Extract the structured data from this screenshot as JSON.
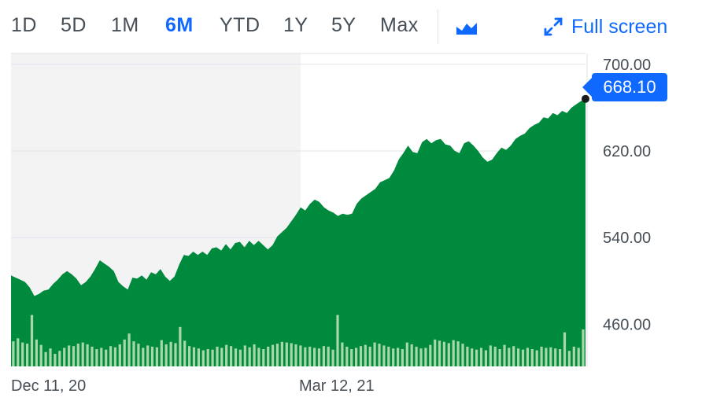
{
  "toolbar": {
    "ranges": [
      "1D",
      "5D",
      "1M",
      "6M",
      "YTD",
      "1Y",
      "5Y",
      "Max"
    ],
    "active_range": "6M",
    "chart_type_icon": "mountain-chart-icon",
    "fullscreen_icon": "expand-arrows-icon",
    "fullscreen_label": "Full screen"
  },
  "current_price": "668.10",
  "colors": {
    "area": "#008a3e",
    "accent": "#0f69ff",
    "volume": "#a8d8a8",
    "shade": "#f3f3f3",
    "grid": "#e0e3eb"
  },
  "chart_data": {
    "type": "area",
    "ylim": [
      421,
      710
    ],
    "yticks": [
      "700.00",
      "620.00",
      "540.00",
      "460.00"
    ],
    "ytick_values": [
      700,
      620,
      540,
      460
    ],
    "xtick_labels": [
      "Dec 11, 20",
      "Mar 12, 21"
    ],
    "shaded_period_end_index": 62,
    "price": [
      505,
      503,
      501,
      499,
      494,
      486,
      488,
      491,
      492,
      497,
      501,
      506,
      509,
      506,
      502,
      496,
      499,
      504,
      511,
      519,
      516,
      513,
      509,
      499,
      495,
      492,
      503,
      502,
      505,
      501,
      508,
      506,
      511,
      504,
      500,
      504,
      515,
      524,
      523,
      527,
      524,
      527,
      524,
      530,
      531,
      528,
      534,
      529,
      535,
      536,
      531,
      537,
      533,
      537,
      533,
      529,
      533,
      541,
      545,
      549,
      555,
      561,
      568,
      565,
      571,
      575,
      573,
      568,
      565,
      563,
      560,
      562,
      561,
      562,
      571,
      576,
      579,
      582,
      585,
      591,
      593,
      595,
      602,
      612,
      618,
      625,
      619,
      618,
      628,
      631,
      627,
      630,
      631,
      626,
      625,
      620,
      618,
      627,
      629,
      625,
      620,
      614,
      610,
      612,
      618,
      623,
      621,
      625,
      631,
      634,
      636,
      641,
      644,
      646,
      651,
      650,
      655,
      653,
      657,
      655,
      660,
      663,
      666,
      668.1
    ],
    "volume": [
      0.42,
      0.47,
      0.4,
      0.38,
      0.86,
      0.45,
      0.36,
      0.24,
      0.3,
      0.21,
      0.26,
      0.31,
      0.35,
      0.34,
      0.38,
      0.4,
      0.37,
      0.33,
      0.29,
      0.31,
      0.28,
      0.34,
      0.32,
      0.37,
      0.45,
      0.55,
      0.42,
      0.38,
      0.31,
      0.35,
      0.33,
      0.32,
      0.44,
      0.37,
      0.41,
      0.39,
      0.66,
      0.43,
      0.34,
      0.32,
      0.3,
      0.27,
      0.29,
      0.28,
      0.33,
      0.31,
      0.36,
      0.34,
      0.3,
      0.28,
      0.35,
      0.32,
      0.37,
      0.31,
      0.29,
      0.33,
      0.36,
      0.38,
      0.41,
      0.4,
      0.39,
      0.37,
      0.35,
      0.32,
      0.33,
      0.31,
      0.3,
      0.34,
      0.33,
      0.28,
      0.86,
      0.4,
      0.33,
      0.29,
      0.31,
      0.34,
      0.36,
      0.33,
      0.4,
      0.38,
      0.35,
      0.33,
      0.3,
      0.31,
      0.29,
      0.4,
      0.37,
      0.33,
      0.3,
      0.31,
      0.36,
      0.45,
      0.43,
      0.41,
      0.39,
      0.44,
      0.42,
      0.38,
      0.33,
      0.3,
      0.28,
      0.31,
      0.27,
      0.35,
      0.33,
      0.29,
      0.36,
      0.31,
      0.34,
      0.3,
      0.28,
      0.31,
      0.29,
      0.27,
      0.33,
      0.31,
      0.32,
      0.3,
      0.29,
      0.57,
      0.26,
      0.33,
      0.31,
      0.62
    ]
  }
}
